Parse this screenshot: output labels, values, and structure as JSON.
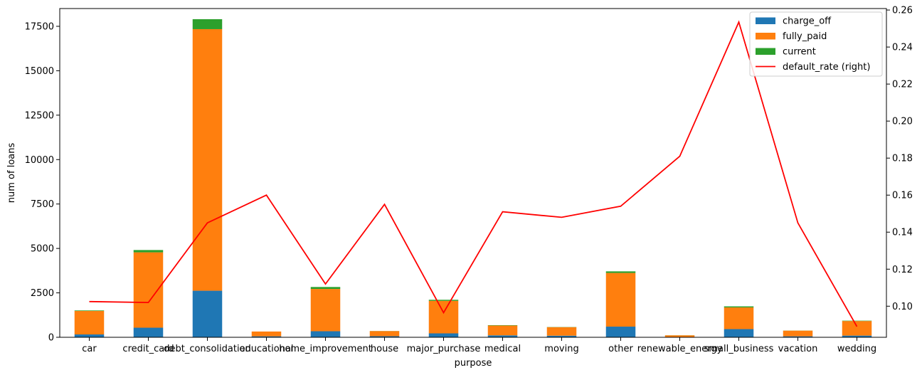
{
  "chart_data": {
    "type": "bar",
    "stacked": true,
    "categories": [
      "car",
      "credit_card",
      "debt_consolidation",
      "educational",
      "home_improvement",
      "house",
      "major_purchase",
      "medical",
      "moving",
      "other",
      "renewable_energy",
      "small_business",
      "vacation",
      "wedding"
    ],
    "series": [
      {
        "name": "charge_off",
        "color": "#1f77b4",
        "values": [
          160,
          540,
          2620,
          55,
          340,
          60,
          220,
          110,
          90,
          600,
          20,
          460,
          55,
          95
        ]
      },
      {
        "name": "fully_paid",
        "color": "#ff7f0e",
        "values": [
          1320,
          4240,
          14720,
          270,
          2380,
          290,
          1830,
          550,
          480,
          3020,
          90,
          1220,
          320,
          820
        ]
      },
      {
        "name": "current",
        "color": "#2ca02c",
        "values": [
          30,
          130,
          560,
          0,
          110,
          5,
          60,
          20,
          10,
          90,
          5,
          60,
          5,
          20
        ]
      }
    ],
    "line_series": {
      "name": "default_rate (right)",
      "color": "#ff0000",
      "axis": "right",
      "values": [
        0.1025,
        0.102,
        0.145,
        0.16,
        0.112,
        0.155,
        0.0965,
        0.151,
        0.148,
        0.154,
        0.181,
        0.2535,
        0.145,
        0.089
      ]
    },
    "xlabel": "purpose",
    "ylabel": "num of loans",
    "ylim": [
      0,
      18500
    ],
    "yticks": [
      0,
      2500,
      5000,
      7500,
      10000,
      12500,
      15000,
      17500
    ],
    "ytick_labels": [
      "0",
      "2500",
      "5000",
      "7500",
      "10000",
      "12500",
      "15000",
      "17500"
    ],
    "y2lim": [
      0.0832,
      0.2608
    ],
    "y2ticks": [
      0.1,
      0.12,
      0.14,
      0.16,
      0.18,
      0.2,
      0.22,
      0.24,
      0.26
    ],
    "y2tick_labels": [
      "0.10",
      "0.12",
      "0.14",
      "0.16",
      "0.18",
      "0.20",
      "0.22",
      "0.24",
      "0.26"
    ],
    "legend": [
      "charge_off",
      "fully_paid",
      "current",
      "default_rate (right)"
    ],
    "legend_position": "top-right",
    "grid": false
  }
}
